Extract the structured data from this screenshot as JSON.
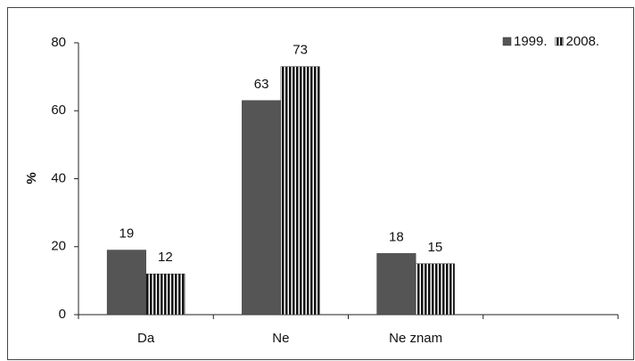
{
  "chart_data": {
    "type": "bar",
    "y_label": "%",
    "categories": [
      "Da",
      "Ne",
      "Ne znam",
      null
    ],
    "series": [
      {
        "name": "1999.",
        "color": "#555555",
        "values": [
          19,
          63,
          18,
          null
        ]
      },
      {
        "name": "2008.",
        "color": "#111111",
        "hatch": "vertical",
        "values": [
          12,
          73,
          15,
          null
        ]
      }
    ],
    "ylim": [
      0,
      80
    ],
    "yticks": [
      0,
      20,
      40,
      60,
      80
    ],
    "grid": false,
    "legend": "top-right",
    "data_labels": true
  }
}
